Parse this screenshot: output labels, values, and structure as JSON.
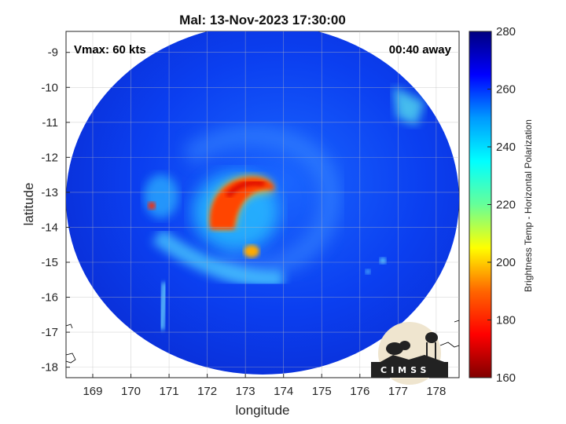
{
  "chart_data": {
    "type": "heatmap",
    "title": "Mal: 13-Nov-2023 17:30:00",
    "xlabel": "longitude",
    "ylabel": "latitude",
    "xlim": [
      168.3,
      178.6
    ],
    "ylim": [
      -18.3,
      -8.4
    ],
    "x_ticks": [
      "169",
      "170",
      "171",
      "172",
      "173",
      "174",
      "175",
      "176",
      "177",
      "178"
    ],
    "y_ticks": [
      "-9",
      "-10",
      "-11",
      "-12",
      "-13",
      "-14",
      "-15",
      "-16",
      "-17",
      "-18"
    ],
    "annotations": {
      "vmax": "Vmax: 60 kts",
      "time_away": "00:40 away"
    },
    "colorbar": {
      "label": "Brightness Temp - Horizontal Polarization",
      "range": [
        160,
        280
      ],
      "ticks": [
        "280",
        "260",
        "240",
        "220",
        "200",
        "180",
        "160"
      ],
      "colormap": "jet"
    },
    "swath": {
      "center": [
        173.4,
        -13.3
      ],
      "radius_lon": 5.0,
      "radius_lat": 4.9
    },
    "features": [
      {
        "name": "eyewall-band-cold",
        "lon": [
          172.2,
          173.8
        ],
        "lat": [
          -12.7,
          -14.3
        ],
        "min_temp": 172
      },
      {
        "name": "convective-cell-west",
        "lon": 170.5,
        "lat": -13.3,
        "temp": 185
      },
      {
        "name": "convective-cell-south",
        "lon": 173.1,
        "lat": -14.8,
        "temp": 200
      },
      {
        "name": "outer-rainband",
        "lon": [
          171.0,
          174.0
        ],
        "lat": [
          -14.5,
          -16.0
        ],
        "temp": 235
      }
    ],
    "grid": true,
    "logo": "CIMSS"
  }
}
